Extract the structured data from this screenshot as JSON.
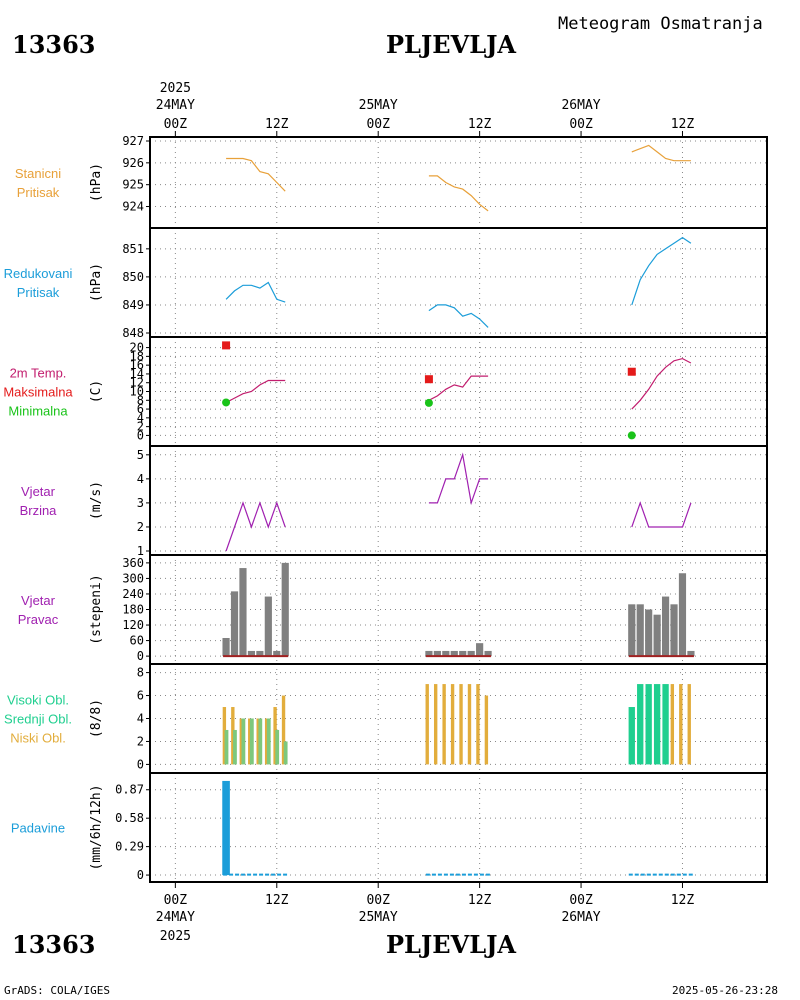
{
  "header": {
    "station_id": "13363",
    "station_name": "PLJEVLJA",
    "product_title": "Meteogram Osmatranja"
  },
  "footer": {
    "station_id": "13363",
    "station_name": "PLJEVLJA",
    "credit": "GrADS: COLA/IGES",
    "timestamp": "2025-05-26-23:28"
  },
  "time_axis": {
    "top_year": "2025",
    "bottom_year": "2025",
    "ticks": [
      {
        "hour": 0,
        "label": "00Z",
        "date": "24MAY"
      },
      {
        "hour": 12,
        "label": "12Z",
        "date": ""
      },
      {
        "hour": 24,
        "label": "00Z",
        "date": "25MAY"
      },
      {
        "hour": 36,
        "label": "12Z",
        "date": ""
      },
      {
        "hour": 48,
        "label": "00Z",
        "date": "26MAY"
      },
      {
        "hour": 60,
        "label": "12Z",
        "date": ""
      }
    ],
    "range_hours": [
      -3,
      70
    ]
  },
  "colors": {
    "orange": "#e8a13a",
    "blue": "#1b9dd9",
    "magenta": "#c21d6e",
    "red": "#e41a1a",
    "green": "#19c319",
    "purple": "#a020b0",
    "gray": "#808080",
    "teal": "#1fcf8f",
    "cloud_orange": "#e2ad3c",
    "cloud_green": "#7dc87d",
    "dark_red": "#a02020"
  },
  "chart_data": [
    {
      "type": "line",
      "name": "station-pressure",
      "labels": [
        "Stanicni",
        "Pritisak"
      ],
      "label_color": "orange",
      "unit": "(hPa)",
      "ylim": [
        923.2,
        927
      ],
      "yticks": [
        {
          "v": 924,
          "t": "924"
        },
        {
          "v": 925,
          "t": "925"
        },
        {
          "v": 926,
          "t": "926"
        },
        {
          "v": 927,
          "t": "927"
        }
      ],
      "series": [
        {
          "color": "orange",
          "segments": [
            [
              [
                6,
                926.2
              ],
              [
                8,
                926.2
              ],
              [
                9,
                926.1
              ],
              [
                10,
                925.6
              ],
              [
                11,
                925.5
              ],
              [
                12,
                925.1
              ],
              [
                13,
                924.7
              ]
            ],
            [
              [
                30,
                925.4
              ],
              [
                31,
                925.4
              ],
              [
                32,
                925.1
              ],
              [
                33,
                924.9
              ],
              [
                34,
                924.8
              ],
              [
                35,
                924.5
              ],
              [
                36,
                924.1
              ],
              [
                37,
                923.8
              ]
            ],
            [
              [
                54,
                926.5
              ],
              [
                56,
                926.8
              ],
              [
                57,
                926.5
              ],
              [
                58,
                926.2
              ],
              [
                59,
                926.1
              ],
              [
                60,
                926.1
              ],
              [
                61,
                926.1
              ]
            ]
          ]
        }
      ]
    },
    {
      "type": "line",
      "name": "reduced-pressure",
      "labels": [
        "Redukovani",
        "Pritisak"
      ],
      "label_color": "blue",
      "unit": "(hPa)",
      "ylim": [
        848,
        851.6
      ],
      "yticks": [
        {
          "v": 848,
          "t": "848"
        },
        {
          "v": 849,
          "t": "849"
        },
        {
          "v": 850,
          "t": "850"
        },
        {
          "v": 851,
          "t": "851"
        }
      ],
      "series": [
        {
          "color": "blue",
          "segments": [
            [
              [
                6,
                849.2
              ],
              [
                7,
                849.5
              ],
              [
                8,
                849.7
              ],
              [
                9,
                849.7
              ],
              [
                10,
                849.6
              ],
              [
                11,
                849.8
              ],
              [
                12,
                849.2
              ],
              [
                13,
                849.1
              ]
            ],
            [
              [
                30,
                848.8
              ],
              [
                31,
                849.0
              ],
              [
                32,
                849.0
              ],
              [
                33,
                848.9
              ],
              [
                34,
                848.6
              ],
              [
                35,
                848.7
              ],
              [
                36,
                848.5
              ],
              [
                37,
                848.2
              ]
            ],
            [
              [
                54,
                849.0
              ],
              [
                55,
                849.9
              ],
              [
                56,
                850.4
              ],
              [
                57,
                850.8
              ],
              [
                58,
                851.0
              ],
              [
                59,
                851.2
              ],
              [
                60,
                851.4
              ],
              [
                61,
                851.2
              ]
            ]
          ]
        }
      ]
    },
    {
      "type": "line",
      "name": "temperature",
      "labels": [
        "2m Temp.",
        "Maksimalna",
        "Minimalna"
      ],
      "label_colors": [
        "magenta",
        "red",
        "green"
      ],
      "unit": "(C)",
      "ylim": [
        -1.5,
        21.5
      ],
      "yticks": [
        {
          "v": 0,
          "t": "0"
        },
        {
          "v": 2,
          "t": "2"
        },
        {
          "v": 4,
          "t": "4"
        },
        {
          "v": 6,
          "t": "6"
        },
        {
          "v": 8,
          "t": "8"
        },
        {
          "v": 10,
          "t": "10"
        },
        {
          "v": 12,
          "t": "12"
        },
        {
          "v": 14,
          "t": "14"
        },
        {
          "v": 16,
          "t": "16"
        },
        {
          "v": 18,
          "t": "18"
        },
        {
          "v": 20,
          "t": "20"
        }
      ],
      "series": [
        {
          "color": "magenta",
          "segments": [
            [
              [
                6,
                7.5
              ],
              [
                7,
                8.5
              ],
              [
                8,
                9.5
              ],
              [
                9,
                10.0
              ],
              [
                10,
                11.5
              ],
              [
                11,
                12.5
              ],
              [
                12,
                12.5
              ],
              [
                13,
                12.5
              ]
            ],
            [
              [
                30,
                8.0
              ],
              [
                31,
                9.0
              ],
              [
                32,
                10.5
              ],
              [
                33,
                11.5
              ],
              [
                34,
                11.0
              ],
              [
                35,
                13.5
              ],
              [
                36,
                13.5
              ],
              [
                37,
                13.5
              ]
            ],
            [
              [
                54,
                6.0
              ],
              [
                55,
                8.0
              ],
              [
                56,
                10.5
              ],
              [
                57,
                13.5
              ],
              [
                58,
                15.5
              ],
              [
                59,
                17.0
              ],
              [
                60,
                17.5
              ],
              [
                61,
                16.5
              ]
            ]
          ]
        }
      ],
      "markers": [
        {
          "shape": "square",
          "color": "red",
          "points": [
            [
              6,
              20.5
            ],
            [
              30,
              12.8
            ],
            [
              54,
              14.5
            ]
          ]
        },
        {
          "shape": "circle",
          "color": "green",
          "points": [
            [
              6,
              7.5
            ],
            [
              30,
              7.4
            ],
            [
              54,
              0
            ]
          ]
        }
      ]
    },
    {
      "type": "line",
      "name": "wind-speed",
      "labels": [
        "Vjetar",
        "Brzina"
      ],
      "label_color": "purple",
      "unit": "(m/s)",
      "ylim": [
        1,
        5.2
      ],
      "yticks": [
        {
          "v": 1,
          "t": "1"
        },
        {
          "v": 2,
          "t": "2"
        },
        {
          "v": 3,
          "t": "3"
        },
        {
          "v": 4,
          "t": "4"
        },
        {
          "v": 5,
          "t": "5"
        }
      ],
      "series": [
        {
          "color": "purple",
          "segments": [
            [
              [
                6,
                1
              ],
              [
                8,
                3
              ],
              [
                9,
                2
              ],
              [
                10,
                3
              ],
              [
                11,
                2
              ],
              [
                12,
                3
              ],
              [
                13,
                2
              ]
            ],
            [
              [
                30,
                3
              ],
              [
                31,
                3
              ],
              [
                32,
                4
              ],
              [
                33,
                4
              ],
              [
                34,
                5
              ],
              [
                35,
                3
              ],
              [
                36,
                4
              ],
              [
                37,
                4
              ]
            ],
            [
              [
                54,
                2
              ],
              [
                55,
                3
              ],
              [
                56,
                2
              ],
              [
                57,
                2
              ],
              [
                58,
                2
              ],
              [
                59,
                2
              ],
              [
                60,
                2
              ],
              [
                61,
                3
              ]
            ]
          ]
        }
      ]
    },
    {
      "type": "bar",
      "name": "wind-direction",
      "labels": [
        "Vjetar",
        "Pravac"
      ],
      "label_color": "purple",
      "unit": "(stepeni)",
      "ylim": [
        -15,
        375
      ],
      "yticks": [
        {
          "v": 0,
          "t": "0"
        },
        {
          "v": 60,
          "t": "60"
        },
        {
          "v": 120,
          "t": "120"
        },
        {
          "v": 180,
          "t": "180"
        },
        {
          "v": 240,
          "t": "240"
        },
        {
          "v": 300,
          "t": "300"
        },
        {
          "v": 360,
          "t": "360"
        }
      ],
      "bars": [
        {
          "color": "gray",
          "width_h": 0.85,
          "points": [
            [
              6,
              70
            ],
            [
              7,
              250
            ],
            [
              8,
              340
            ],
            [
              9,
              20
            ],
            [
              10,
              20
            ],
            [
              11,
              230
            ],
            [
              12,
              20
            ],
            [
              13,
              360
            ],
            [
              30,
              20
            ],
            [
              31,
              20
            ],
            [
              32,
              20
            ],
            [
              33,
              20
            ],
            [
              34,
              20
            ],
            [
              35,
              20
            ],
            [
              36,
              50
            ],
            [
              37,
              20
            ],
            [
              54,
              200
            ],
            [
              55,
              200
            ],
            [
              56,
              180
            ],
            [
              57,
              160
            ],
            [
              58,
              230
            ],
            [
              59,
              200
            ],
            [
              60,
              320
            ],
            [
              61,
              20
            ]
          ]
        }
      ],
      "baselines": [
        {
          "color": "dark_red",
          "segments": [
            [
              6,
              13
            ],
            [
              30,
              37
            ],
            [
              54,
              61
            ]
          ],
          "value": 0
        }
      ]
    },
    {
      "type": "bar",
      "name": "cloud-cover",
      "labels": [
        "Visoki Obl.",
        "Srednji Obl.",
        "Niski Obl."
      ],
      "label_colors": [
        "teal",
        "teal",
        "cloud_orange"
      ],
      "unit": "(8/8)",
      "ylim": [
        -0.4,
        8.4
      ],
      "yticks": [
        {
          "v": 0,
          "t": "0"
        },
        {
          "v": 2,
          "t": "2"
        },
        {
          "v": 4,
          "t": "4"
        },
        {
          "v": 6,
          "t": "6"
        },
        {
          "v": 8,
          "t": "8"
        }
      ],
      "bars": [
        {
          "color": "cloud_orange",
          "width_h": 0.4,
          "offset_h": -0.2,
          "points": [
            [
              6,
              5
            ],
            [
              7,
              5
            ],
            [
              8,
              4
            ],
            [
              9,
              4
            ],
            [
              10,
              4
            ],
            [
              11,
              4
            ],
            [
              12,
              5
            ],
            [
              13,
              6
            ],
            [
              30,
              7
            ],
            [
              31,
              7
            ],
            [
              32,
              7
            ],
            [
              33,
              7
            ],
            [
              34,
              7
            ],
            [
              35,
              7
            ],
            [
              36,
              7
            ],
            [
              37,
              6
            ],
            [
              59,
              7
            ],
            [
              60,
              7
            ],
            [
              61,
              7
            ]
          ]
        },
        {
          "color": "cloud_green",
          "width_h": 0.45,
          "offset_h": 0.05,
          "points": [
            [
              6,
              3
            ],
            [
              7,
              3
            ],
            [
              8,
              4
            ],
            [
              9,
              4
            ],
            [
              10,
              4
            ],
            [
              11,
              4
            ],
            [
              12,
              3
            ],
            [
              13,
              2
            ]
          ]
        },
        {
          "color": "teal",
          "width_h": 0.75,
          "offset_h": 0,
          "points": [
            [
              54,
              5
            ],
            [
              55,
              7
            ],
            [
              56,
              7
            ],
            [
              57,
              7
            ],
            [
              58,
              7
            ]
          ]
        }
      ]
    },
    {
      "type": "bar",
      "name": "precipitation",
      "labels": [
        "Padavine"
      ],
      "label_color": "blue",
      "unit": "(mm/6h/12h)",
      "ylim": [
        -0.03,
        1.0
      ],
      "yticks": [
        {
          "v": 0,
          "t": "0"
        },
        {
          "v": 0.29,
          "t": "0.29"
        },
        {
          "v": 0.58,
          "t": "0.58"
        },
        {
          "v": 0.87,
          "t": "0.87"
        }
      ],
      "bars": [
        {
          "color": "blue",
          "width_h": 0.9,
          "points": [
            [
              6,
              0.96
            ]
          ]
        }
      ],
      "baselines": [
        {
          "color": "blue",
          "segments": [
            [
              6,
              13
            ],
            [
              30,
              37
            ],
            [
              54,
              61
            ]
          ],
          "value": 0.005,
          "dashed": true
        }
      ]
    }
  ]
}
